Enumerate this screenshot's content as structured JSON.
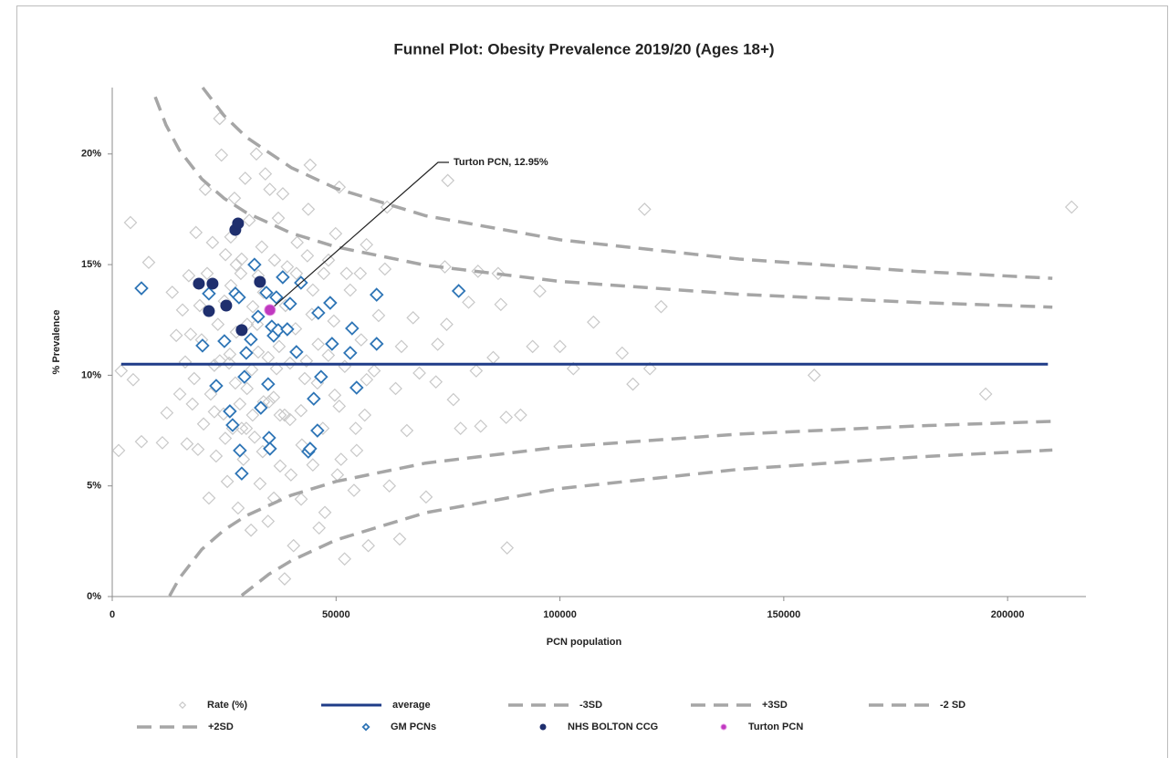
{
  "chart_data": {
    "type": "scatter",
    "title": "Funnel Plot: Obesity Prevalence 2019/20 (Ages 18+)",
    "x_label": "PCN population",
    "y_label": "% Prevalence",
    "xlim": [
      0,
      217500
    ],
    "xticks": [
      0,
      50000,
      100000,
      150000,
      200000
    ],
    "ylim": [
      0,
      23
    ],
    "yticks": [
      {
        "value": 0,
        "label": "0%"
      },
      {
        "value": 5,
        "label": "5%"
      },
      {
        "value": 10,
        "label": "10%"
      },
      {
        "value": 15,
        "label": "15%"
      },
      {
        "value": 20,
        "label": "20%"
      }
    ],
    "grid": false,
    "legend": "bottom",
    "annotation": {
      "text": "Turton PCN, 12.95%",
      "series": 8,
      "point": 0
    },
    "series": [
      {
        "name": "Rate (%)",
        "style": "marker",
        "marker": "diamond",
        "filled": false,
        "color": "#c8c8c8",
        "x": [
          2000,
          1430,
          4070,
          4680,
          6520,
          8150,
          118900,
          214300,
          195100,
          156800,
          122600,
          120100,
          116300,
          113900,
          107500,
          103000,
          100000,
          95500,
          93900,
          91200,
          88200,
          88000,
          86800,
          86200,
          85100,
          82300,
          81700,
          81300,
          79600,
          77800,
          76200,
          74950,
          74700,
          74300,
          72700,
          72300,
          70100,
          68600,
          67200,
          65800,
          64600,
          64200,
          63300,
          61900,
          61400,
          60900,
          59500,
          58500,
          57200,
          56800,
          56400,
          55400,
          54600,
          54000,
          51900,
          51100,
          50700,
          49900,
          49700,
          48300,
          47500,
          46200,
          46000,
          44200,
          43800,
          43000,
          42200,
          41300,
          40500,
          39700,
          39100,
          38500,
          38100,
          37500,
          37100,
          36700,
          36100,
          35200,
          34800,
          34200,
          33800,
          33400,
          33000,
          32600,
          32200,
          31800,
          31400,
          31000,
          30600,
          30100,
          29700,
          29300,
          28900,
          28500,
          28100,
          27700,
          27300,
          26900,
          26500,
          26100,
          25700,
          25300,
          24850,
          24400,
          24000,
          23600,
          23200,
          22800,
          22400,
          22000,
          21600,
          21200,
          20800,
          20400,
          19960,
          19550,
          19150,
          18700,
          18300,
          17900,
          17500,
          17100,
          16700,
          16300,
          15700,
          15100,
          14300,
          13400,
          12200,
          11200,
          25050,
          26270,
          27500,
          28720,
          29940,
          31160,
          32380,
          33600,
          34820,
          36050,
          37270,
          38490,
          39720,
          40940,
          42160,
          43380,
          44600,
          45830,
          47050,
          48270,
          49490,
          50700,
          51940,
          53160,
          54380,
          55600,
          56820,
          24030,
          22810,
          25250,
          26480,
          27700,
          28920,
          30140,
          31360,
          32590,
          33810,
          35030,
          36250,
          37480,
          38700,
          39920,
          41140,
          42360,
          43590,
          44810,
          44810,
          47250,
          50300,
          52340
        ],
        "values": [
          10.2,
          6.6,
          16.9,
          9.8,
          7,
          15.1,
          17.5,
          17.6,
          9.15,
          10,
          13.1,
          10.3,
          9.6,
          11,
          12.4,
          10.3,
          11.3,
          13.8,
          11.3,
          8.2,
          2.2,
          8.1,
          13.2,
          14.6,
          10.8,
          7.7,
          14.7,
          10.2,
          13.3,
          7.6,
          8.9,
          18.8,
          12.3,
          14.9,
          11.4,
          9.7,
          4.5,
          10.1,
          12.6,
          7.5,
          11.3,
          2.6,
          9.4,
          5,
          17.6,
          14.8,
          12.7,
          10.2,
          2.3,
          15.9,
          8.2,
          14.6,
          6.6,
          4.8,
          1.7,
          6.2,
          18.5,
          16.4,
          9.1,
          15.2,
          3.8,
          3.1,
          11.4,
          19.5,
          17.5,
          9.85,
          4.4,
          16,
          2.3,
          8,
          14.9,
          0.8,
          18.2,
          5.9,
          17.1,
          10.3,
          4.45,
          18.4,
          3.4,
          19.1,
          8.8,
          15.8,
          5.1,
          11.05,
          20,
          7.2,
          13.1,
          3,
          17,
          9.4,
          18.9,
          6.2,
          15.25,
          8.7,
          4,
          11.95,
          18,
          7.6,
          14.05,
          10.55,
          5.2,
          15.45,
          8.25,
          19.95,
          21.6,
          12.3,
          6.35,
          10.45,
          16,
          9.15,
          4.45,
          14.6,
          18.4,
          7.8,
          11.6,
          13.15,
          6.65,
          16.45,
          9.85,
          8.7,
          11.85,
          14.5,
          6.9,
          10.6,
          12.95,
          9.15,
          11.8,
          13.75,
          8.3,
          6.95,
          13.35,
          10.95,
          9.65,
          14.6,
          7.6,
          10.25,
          12.3,
          6.55,
          10.8,
          9,
          11.3,
          8.2,
          10.55,
          12.1,
          8.4,
          10.65,
          12.75,
          9.65,
          7.6,
          10.9,
          12.45,
          8.6,
          10.4,
          13.85,
          7.6,
          11.6,
          9.8,
          10.65,
          8.35,
          7.15,
          16.25,
          15,
          7.6,
          12.3,
          8.2,
          14.5,
          13.75,
          8.8,
          15.2,
          8.2,
          13.15,
          5.5,
          14.6,
          6.85,
          15.4,
          5.95,
          13.85,
          14.6,
          5.5,
          14.6
        ]
      },
      {
        "name": "average",
        "style": "line",
        "dashed": false,
        "color": "#1f3c88",
        "x": [
          2000,
          209000
        ],
        "values": [
          10.5,
          10.5
        ]
      },
      {
        "name": "-3SD",
        "style": "line",
        "dashed": true,
        "color": "#a6a6a6",
        "x": [
          28900,
          35000,
          40000,
          50000,
          70000,
          100000,
          140000,
          180000,
          210000
        ],
        "values": [
          0.05,
          1.01,
          1.62,
          2.56,
          3.79,
          4.88,
          5.75,
          6.31,
          6.62
        ]
      },
      {
        "name": "+3SD",
        "style": "line",
        "dashed": true,
        "color": "#a6a6a6",
        "x": [
          20200,
          25000,
          30000,
          40000,
          50000,
          70000,
          100000,
          140000,
          180000,
          210000
        ],
        "values": [
          23,
          21.73,
          20.75,
          19.38,
          18.44,
          17.21,
          16.12,
          15.25,
          14.69,
          14.38
        ]
      },
      {
        "name": "-2 SD",
        "style": "line",
        "dashed": true,
        "color": "#a6a6a6",
        "x": [
          12800,
          15000,
          20000,
          25000,
          30000,
          40000,
          50000,
          70000,
          100000,
          140000,
          180000,
          210000
        ],
        "values": [
          0.03,
          0.83,
          2.13,
          3.01,
          3.66,
          4.58,
          5.2,
          6.03,
          6.76,
          7.34,
          7.71,
          7.92
        ]
      },
      {
        "name": "+2SD",
        "style": "line",
        "dashed": true,
        "color": "#a6a6a6",
        "x": [
          9600,
          12000,
          15000,
          20000,
          25000,
          30000,
          40000,
          50000,
          70000,
          100000,
          140000,
          180000,
          210000
        ],
        "values": [
          22.58,
          21.31,
          20.17,
          18.87,
          17.99,
          17.34,
          16.42,
          15.8,
          14.97,
          14.24,
          13.66,
          13.29,
          13.08
        ]
      },
      {
        "name": "GM PCNs",
        "style": "marker",
        "marker": "diamond",
        "filled": false,
        "color": "#2e75b6",
        "x": [
          6520,
          20160,
          21590,
          23220,
          25050,
          26270,
          26880,
          27500,
          28310,
          28510,
          28920,
          29530,
          29940,
          30960,
          31770,
          32580,
          33190,
          34420,
          34820,
          35030,
          35230,
          35640,
          36050,
          36660,
          37070,
          38090,
          39100,
          39720,
          41140,
          42160,
          43790,
          44200,
          45010,
          45830,
          46030,
          46640,
          48680,
          49090,
          53160,
          53570,
          54580,
          59060,
          59060,
          77390
        ],
        "values": [
          13.93,
          11.34,
          13.69,
          9.52,
          11.54,
          8.37,
          7.75,
          13.69,
          13.52,
          6.6,
          5.56,
          9.93,
          11.01,
          11.62,
          15,
          12.65,
          8.53,
          13.73,
          9.6,
          7.17,
          6.68,
          12.2,
          11.79,
          13.52,
          12.04,
          14.43,
          12.08,
          13.23,
          11.05,
          14.18,
          6.55,
          6.68,
          8.94,
          7.5,
          12.82,
          9.93,
          13.27,
          11.42,
          11.01,
          12.12,
          9.44,
          13.64,
          11.42,
          13.81
        ]
      },
      {
        "name": "NHS BOLTON CCG",
        "style": "marker",
        "marker": "circle",
        "filled": true,
        "color": "#1f2f6e",
        "x": [
          19350,
          22400,
          21590,
          25460,
          27490,
          28100,
          28920,
          32990
        ],
        "values": [
          14.14,
          14.14,
          12.9,
          13.15,
          16.57,
          16.86,
          12.04,
          14.22
        ]
      },
      {
        "name": "Turton PCN",
        "style": "marker",
        "marker": "circle",
        "filled": true,
        "color": "#c039c0",
        "x": [
          35230
        ],
        "values": [
          12.95
        ]
      }
    ]
  }
}
